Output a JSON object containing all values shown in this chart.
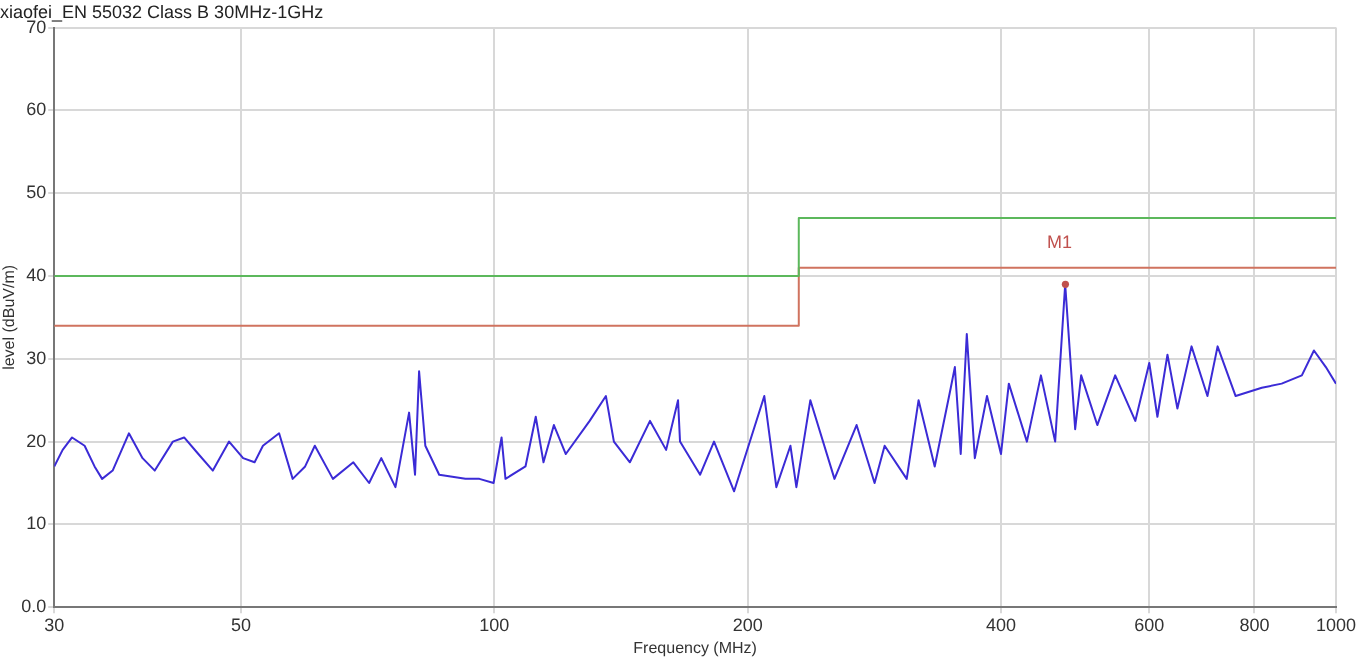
{
  "chart_data": {
    "type": "line",
    "title": "xiaofei_EN 55032 Class B 30MHz-1GHz",
    "xlabel": "Frequency (MHz)",
    "ylabel": "level (dBuV/m)",
    "log": "x",
    "grid": true,
    "legend": false,
    "marker": "none",
    "xlim": [
      30,
      1000
    ],
    "xticks": [
      30,
      50,
      100,
      200,
      400,
      600,
      800,
      1000
    ],
    "ylim": [
      0,
      70
    ],
    "yticks": [
      {
        "value": 0,
        "label": "0.0"
      },
      10,
      20,
      30,
      40,
      50,
      60,
      70
    ],
    "annotations": [
      {
        "text": "M1",
        "x": 477,
        "y": 39
      }
    ],
    "series": [
      {
        "type": "line",
        "color": "#5cb85c",
        "x": [
          30,
          230,
          230,
          1000
        ],
        "values": [
          40,
          40,
          47,
          47
        ]
      },
      {
        "type": "line",
        "color": "#d0735f",
        "x": [
          30,
          230,
          230,
          1000
        ],
        "values": [
          34,
          34,
          41,
          41
        ]
      },
      {
        "type": "line",
        "color": "#3b2bd6",
        "x": [
          30,
          30.7,
          31.5,
          32.6,
          33.5,
          34.2,
          35.2,
          36.8,
          38.2,
          39.5,
          41.5,
          42.8,
          44.5,
          46.3,
          48.4,
          50.3,
          51.9,
          53.1,
          55.5,
          57.6,
          59.6,
          61.2,
          64.3,
          68,
          71,
          73.4,
          76.3,
          79.2,
          80.5,
          81.4,
          82.8,
          86,
          92.4,
          96,
          99.8,
          102,
          103.1,
          108.9,
          112,
          114.4,
          117.7,
          121.6,
          129.8,
          135.7,
          138.7,
          144.9,
          153.1,
          160,
          165.3,
          166.2,
          175.6,
          182.4,
          192.7,
          209.3,
          216.3,
          224.8,
          228.5,
          237.4,
          253.6,
          269.4,
          283,
          290.9,
          309,
          319.2,
          333.6,
          348.6,
          352.5,
          358.2,
          364.2,
          372.3,
          384.9,
          399.9,
          408.6,
          429.3,
          446.1,
          463.8,
          476.7,
          489.9,
          498,
          520.5,
          546.6,
          577.5,
          600,
          613.5,
          630.6,
          648,
          673.5,
          703.5,
          723.3,
          759.9,
          816.3,
          861.9,
          910.8,
          941.4,
          972.6,
          1000
        ],
        "values": [
          17,
          19,
          20.5,
          19.5,
          17,
          15.5,
          16.5,
          21,
          18,
          16.5,
          20,
          20.5,
          18.5,
          16.5,
          20,
          18,
          17.5,
          19.5,
          21,
          15.5,
          17,
          19.5,
          15.5,
          17.5,
          15,
          18,
          14.5,
          23.5,
          16,
          28.5,
          19.5,
          16,
          15.5,
          15.5,
          15,
          20.5,
          15.5,
          17,
          23,
          17.5,
          22,
          18.5,
          22.5,
          25.5,
          20,
          17.5,
          22.5,
          19,
          25,
          20,
          16,
          20,
          14,
          25.5,
          14.5,
          19.5,
          14.5,
          25,
          15.5,
          22,
          15,
          19.5,
          15.5,
          25,
          17,
          26.5,
          29,
          18.5,
          33,
          18,
          25.5,
          18.5,
          27,
          20,
          28,
          20,
          39,
          21.5,
          28,
          22,
          28,
          22.5,
          29.5,
          23,
          30.5,
          24,
          31.5,
          25.5,
          31.5,
          25.5,
          26.5,
          27,
          28,
          31,
          29,
          27
        ]
      }
    ]
  }
}
